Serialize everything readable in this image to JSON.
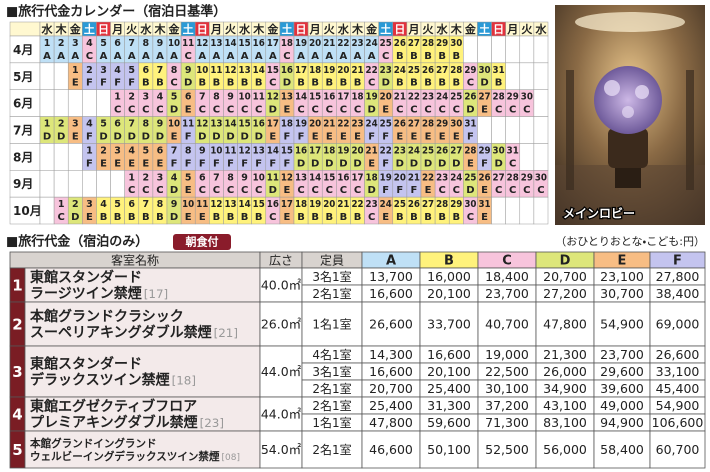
{
  "calendar": {
    "title": "■旅行代金カレンダー（宿泊日基準）",
    "weekdays": [
      "水",
      "木",
      "金",
      "土",
      "日",
      "月",
      "火",
      "水",
      "木",
      "金",
      "土",
      "日",
      "月",
      "火",
      "水",
      "木",
      "金",
      "土",
      "日",
      "月",
      "火",
      "水",
      "木",
      "金",
      "土",
      "日",
      "月",
      "火",
      "水",
      "木",
      "金",
      "土",
      "日",
      "月",
      "火",
      "水"
    ],
    "weekend_colors": {
      "土": "#2a9ad6",
      "日": "#e3323c"
    },
    "rank_colors": {
      "A": "#bfe0f6",
      "B": "#fff27c",
      "C": "#f7c4dc",
      "D": "#dde67a",
      "E": "#f7bd84",
      "F": "#c4c4ef"
    },
    "months": [
      {
        "label": "4月",
        "days": [
          1,
          2,
          3,
          4,
          5,
          6,
          7,
          8,
          9,
          10,
          11,
          12,
          13,
          14,
          15,
          16,
          17,
          18,
          19,
          20,
          21,
          22,
          23,
          24,
          25,
          26,
          27,
          28,
          29,
          30
        ],
        "ranks": [
          "A",
          "A",
          "A",
          "C",
          "A",
          "A",
          "A",
          "A",
          "A",
          "A",
          "C",
          "A",
          "A",
          "A",
          "A",
          "A",
          "A",
          "C",
          "A",
          "A",
          "A",
          "A",
          "A",
          "A",
          "C",
          "B",
          "B",
          "B",
          "B",
          "B"
        ]
      },
      {
        "label": "5月",
        "days": [
          null,
          null,
          1,
          2,
          3,
          4,
          5,
          6,
          7,
          8,
          9,
          10,
          11,
          12,
          13,
          14,
          15,
          16,
          17,
          18,
          19,
          20,
          21,
          22,
          23,
          24,
          25,
          26,
          27,
          28,
          29,
          30,
          31
        ],
        "ranks": [
          null,
          null,
          "E",
          "F",
          "F",
          "F",
          "F",
          "B",
          "B",
          "C",
          "D",
          "B",
          "B",
          "B",
          "B",
          "B",
          "C",
          "D",
          "B",
          "B",
          "B",
          "B",
          "B",
          "C",
          "D",
          "B",
          "B",
          "B",
          "B",
          "B",
          "C",
          "D",
          "B"
        ]
      },
      {
        "label": "6月",
        "days": [
          null,
          null,
          null,
          null,
          null,
          1,
          2,
          3,
          4,
          5,
          6,
          7,
          8,
          9,
          10,
          11,
          12,
          13,
          14,
          15,
          16,
          17,
          18,
          19,
          20,
          21,
          22,
          23,
          24,
          25,
          26,
          27,
          28,
          29,
          30
        ],
        "ranks": [
          null,
          null,
          null,
          null,
          null,
          "C",
          "C",
          "C",
          "C",
          "D",
          "E",
          "C",
          "C",
          "C",
          "C",
          "C",
          "D",
          "E",
          "C",
          "C",
          "C",
          "C",
          "C",
          "D",
          "E",
          "C",
          "C",
          "C",
          "C",
          "C",
          "D",
          "E",
          "C",
          "C",
          "C"
        ]
      },
      {
        "label": "7月",
        "days": [
          1,
          2,
          3,
          4,
          5,
          6,
          7,
          8,
          9,
          10,
          11,
          12,
          13,
          14,
          15,
          16,
          17,
          18,
          19,
          20,
          21,
          22,
          23,
          24,
          25,
          26,
          27,
          28,
          29,
          30,
          31
        ],
        "ranks": [
          "D",
          "D",
          "E",
          "F",
          "D",
          "D",
          "D",
          "D",
          "D",
          "E",
          "F",
          "D",
          "D",
          "D",
          "D",
          "D",
          "E",
          "F",
          "F",
          "E",
          "E",
          "E",
          "E",
          "F",
          "F",
          "E",
          "E",
          "E",
          "E",
          "E",
          "F"
        ]
      },
      {
        "label": "8月",
        "days": [
          null,
          null,
          null,
          1,
          2,
          3,
          4,
          5,
          6,
          7,
          8,
          9,
          10,
          11,
          12,
          13,
          14,
          15,
          16,
          17,
          18,
          19,
          20,
          21,
          22,
          23,
          24,
          25,
          26,
          27,
          28,
          29,
          30,
          31
        ],
        "ranks": [
          null,
          null,
          null,
          "F",
          "E",
          "E",
          "E",
          "E",
          "E",
          "F",
          "F",
          "F",
          "F",
          "F",
          "F",
          "F",
          "F",
          "F",
          "D",
          "D",
          "D",
          "D",
          "D",
          "E",
          "F",
          "D",
          "D",
          "D",
          "D",
          "D",
          "E",
          "F",
          "D",
          "C"
        ]
      },
      {
        "label": "9月",
        "days": [
          null,
          null,
          null,
          null,
          null,
          null,
          1,
          2,
          3,
          4,
          5,
          6,
          7,
          8,
          9,
          10,
          11,
          12,
          13,
          14,
          15,
          16,
          17,
          18,
          19,
          20,
          21,
          22,
          23,
          24,
          25,
          26,
          27,
          28,
          29,
          30
        ],
        "ranks": [
          null,
          null,
          null,
          null,
          null,
          null,
          "C",
          "C",
          "C",
          "D",
          "E",
          "C",
          "C",
          "C",
          "C",
          "C",
          "D",
          "E",
          "C",
          "C",
          "C",
          "C",
          "C",
          "D",
          "F",
          "F",
          "F",
          "E",
          "C",
          "C",
          "D",
          "E",
          "C",
          "C",
          "C",
          "C"
        ]
      },
      {
        "label": "10月",
        "days": [
          null,
          1,
          2,
          3,
          4,
          5,
          6,
          7,
          8,
          9,
          10,
          11,
          12,
          13,
          14,
          15,
          16,
          17,
          18,
          19,
          20,
          21,
          22,
          23,
          24,
          25,
          26,
          27,
          28,
          29,
          30,
          31
        ],
        "ranks": [
          null,
          "C",
          "D",
          "E",
          "B",
          "B",
          "B",
          "B",
          "B",
          "D",
          "E",
          "E",
          "B",
          "B",
          "B",
          "B",
          "C",
          "E",
          "B",
          "B",
          "B",
          "B",
          "B",
          "C",
          "E",
          "B",
          "B",
          "B",
          "B",
          "B",
          "C",
          "E"
        ]
      }
    ]
  },
  "photo": {
    "caption": "メインロビー"
  },
  "prices": {
    "title": "■旅行代金（宿泊のみ）",
    "badge": "朝食付",
    "note": "（おひとりおとな・こども:円）",
    "headers": [
      "客室名称",
      "広さ",
      "定員",
      "A",
      "B",
      "C",
      "D",
      "E",
      "F"
    ],
    "rooms": [
      {
        "no": "1",
        "name": [
          "東館スタンダード",
          "ラージツイン禁煙"
        ],
        "code": "[17]",
        "area": "40.0㎡",
        "rows": [
          {
            "occupancy": "3名1室",
            "prices": [
              "13,700",
              "16,000",
              "18,400",
              "20,700",
              "23,100",
              "27,800"
            ]
          },
          {
            "occupancy": "2名1室",
            "prices": [
              "16,600",
              "20,100",
              "23,700",
              "27,200",
              "30,700",
              "38,400"
            ]
          }
        ]
      },
      {
        "no": "2",
        "name": [
          "本館グランドクラシック",
          "スーペリアキングダブル禁煙"
        ],
        "code": "[21]",
        "area": "26.0㎡",
        "rows": [
          {
            "occupancy": "1名1室",
            "prices": [
              "26,600",
              "33,700",
              "40,700",
              "47,800",
              "54,900",
              "69,000"
            ]
          }
        ]
      },
      {
        "no": "3",
        "name": [
          "東館スタンダード",
          "デラックスツイン禁煙"
        ],
        "code": "[18]",
        "area": "44.0㎡",
        "rows": [
          {
            "occupancy": "4名1室",
            "prices": [
              "14,300",
              "16,600",
              "19,000",
              "21,300",
              "23,700",
              "26,600"
            ]
          },
          {
            "occupancy": "3名1室",
            "prices": [
              "16,600",
              "20,100",
              "22,500",
              "26,000",
              "29,600",
              "33,100"
            ]
          },
          {
            "occupancy": "2名1室",
            "prices": [
              "20,700",
              "25,400",
              "30,100",
              "34,900",
              "39,600",
              "45,400"
            ]
          }
        ]
      },
      {
        "no": "4",
        "name": [
          "東館エグゼクティブフロア",
          "プレミアキングダブル禁煙"
        ],
        "code": "[23]",
        "area": "44.0㎡",
        "rows": [
          {
            "occupancy": "2名1室",
            "prices": [
              "25,400",
              "31,300",
              "37,200",
              "43,100",
              "49,000",
              "54,900"
            ]
          },
          {
            "occupancy": "1名1室",
            "prices": [
              "47,800",
              "59,600",
              "71,300",
              "83,100",
              "94,900",
              "106,600"
            ]
          }
        ]
      },
      {
        "no": "5",
        "name": [
          "本館グランドイングランド",
          "ウェルビーイングデラックスツイン禁煙"
        ],
        "code": "[08]",
        "area": "54.0㎡",
        "rows": [
          {
            "occupancy": "2名1室",
            "prices": [
              "46,600",
              "50,100",
              "52,500",
              "56,000",
              "58,400",
              "60,700"
            ]
          }
        ]
      }
    ]
  }
}
